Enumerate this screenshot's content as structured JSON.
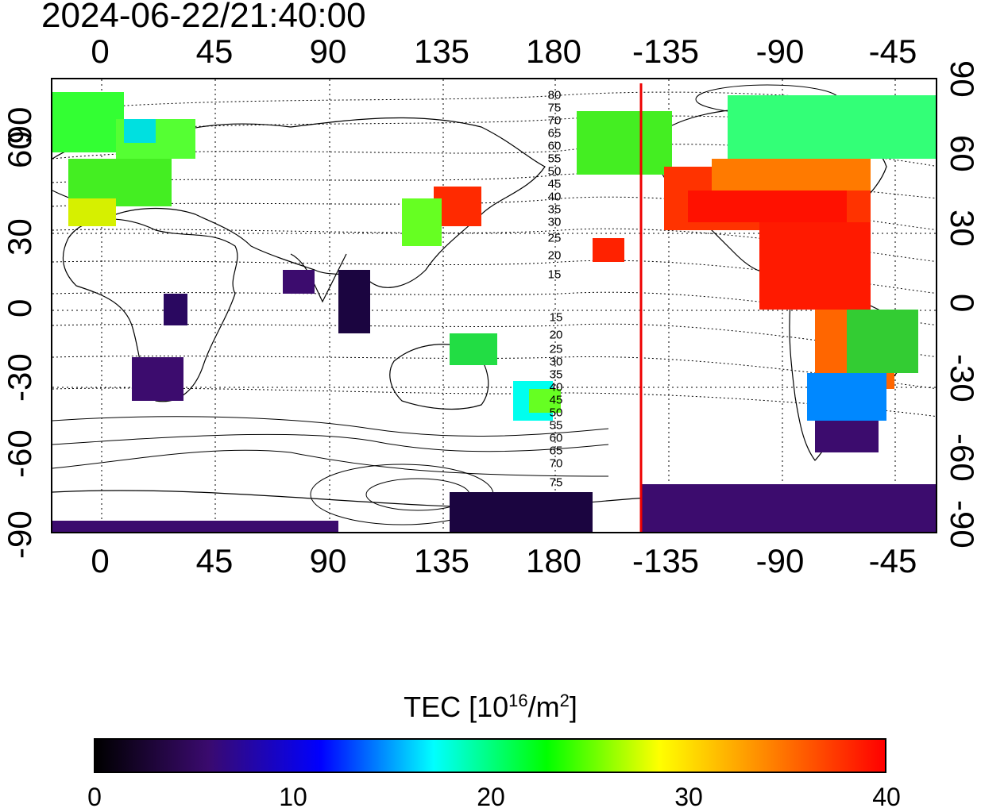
{
  "timestamp": "2024-06-22/21:40:00",
  "top_lon_labels": [
    "0",
    "45",
    "90",
    "135",
    "180",
    "-135",
    "-90",
    "-45"
  ],
  "bottom_lon_labels": [
    "0",
    "45",
    "90",
    "135",
    "180",
    "-135",
    "-90",
    "-45"
  ],
  "left_lat_labels": [
    "90",
    "60",
    "30",
    "0",
    "-30",
    "-60",
    "-90"
  ],
  "right_lat_labels": [
    "90",
    "60",
    "30",
    "0",
    "-30",
    "-60",
    "-90"
  ],
  "north_contour_labels": [
    "80",
    "75",
    "70",
    "65",
    "60",
    "55",
    "50",
    "45",
    "40",
    "35",
    "30",
    "25",
    "20",
    "15"
  ],
  "south_contour_labels": [
    "15",
    "20",
    "25",
    "30",
    "35",
    "40",
    "45",
    "50",
    "55",
    "60",
    "65",
    "70",
    "75"
  ],
  "terminator_longitude": "-145",
  "colorbar": {
    "title_main": "TEC  [10",
    "title_sup1": "16",
    "title_mid": "/m",
    "title_sup2": "2",
    "title_end": "]",
    "ticks": [
      "0",
      "10",
      "20",
      "30",
      "40"
    ],
    "stops": [
      "#000000",
      "#3a0a6e",
      "#0000ff",
      "#00ffff",
      "#00ff00",
      "#ffff00",
      "#ff8000",
      "#ff0000"
    ]
  }
}
